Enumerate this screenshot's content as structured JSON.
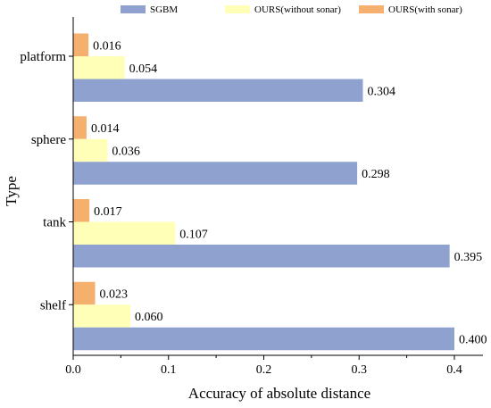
{
  "chart_data": {
    "type": "bar",
    "orientation": "horizontal",
    "categories": [
      "platform",
      "sphere",
      "tank",
      "shelf"
    ],
    "series": [
      {
        "name": "OURS(with sonar)",
        "values": [
          0.016,
          0.014,
          0.017,
          0.023
        ],
        "color": "#f5b06e"
      },
      {
        "name": "OURS(without sonar)",
        "values": [
          0.054,
          0.036,
          0.107,
          0.06
        ],
        "color": "#ffffb8"
      },
      {
        "name": "SGBM",
        "values": [
          0.304,
          0.298,
          0.395,
          0.4
        ],
        "color": "#8fa2cf"
      }
    ],
    "data_labels": [
      [
        "0.016",
        "0.054",
        "0.304"
      ],
      [
        "0.014",
        "0.036",
        "0.298"
      ],
      [
        "0.017",
        "0.107",
        "0.395"
      ],
      [
        "0.023",
        "0.060",
        "0.400"
      ]
    ],
    "legend_order": [
      "SGBM",
      "OURS(without sonar)",
      "OURS(with sonar)"
    ],
    "legend_placement": "top",
    "xlabel": "Accuracy of absolute distance",
    "ylabel": "Type",
    "xlim": [
      0,
      0.43
    ],
    "xticks": [
      0.0,
      0.1,
      0.2,
      0.3,
      0.4
    ],
    "xtick_labels": [
      "0.0",
      "0.1",
      "0.2",
      "0.3",
      "0.4"
    ],
    "grid": false
  }
}
